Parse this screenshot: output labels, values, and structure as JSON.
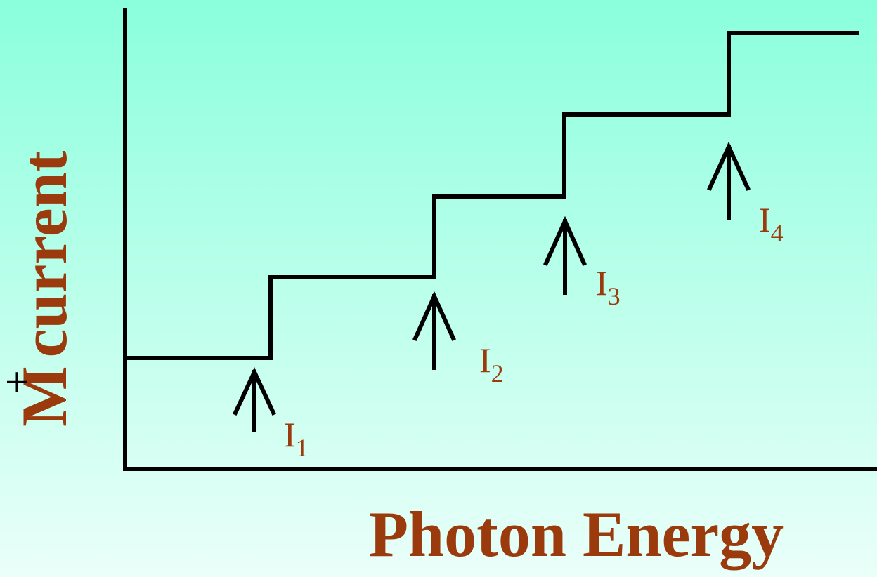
{
  "y_label": {
    "main": "M",
    "sup": "+",
    "rest": "current"
  },
  "x_label": "Photon Energy",
  "thresholds": [
    {
      "base": "I",
      "sub": "1"
    },
    {
      "base": "I",
      "sub": "2"
    },
    {
      "base": "I",
      "sub": "3"
    },
    {
      "base": "I",
      "sub": "4"
    }
  ]
}
